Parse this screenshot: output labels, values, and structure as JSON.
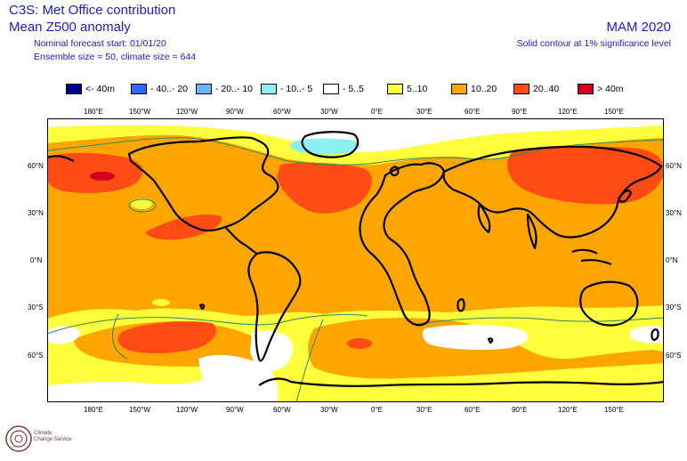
{
  "header": {
    "title_line1": "C3S: Met Office contribution",
    "title_line2": "Mean Z500 anomaly",
    "forecast_start": "Nominal forecast start: 01/01/20",
    "ensemble": "Ensemble size = 50, climate size = 644",
    "season": "MAM 2020",
    "significance": "Solid contour at 1% significance level"
  },
  "legend": [
    {
      "label": "<- 40m",
      "color": "#00008b"
    },
    {
      "label": "- 40..- 20",
      "color": "#3264ff"
    },
    {
      "label": "- 20..- 10",
      "color": "#64b4ff"
    },
    {
      "label": "- 10..- 5",
      "color": "#8cf0f0"
    },
    {
      "label": "- 5..5",
      "color": "#ffffff"
    },
    {
      "label": "5..10",
      "color": "#ffff3c"
    },
    {
      "label": "10..20",
      "color": "#ffa500"
    },
    {
      "label": "20..40",
      "color": "#ff4b14"
    },
    {
      "label": "> 40m",
      "color": "#d2001e"
    }
  ],
  "map": {
    "lon_labels": [
      "180°E",
      "150°W",
      "120°W",
      "90°W",
      "60°W",
      "30°W",
      "0°E",
      "30°E",
      "60°E",
      "90°E",
      "120°E",
      "150°E"
    ],
    "lat_labels": [
      "60°N",
      "30°N",
      "0°N",
      "30°S",
      "60°S"
    ],
    "contour_color": "#2e8b57"
  },
  "logo": {
    "line1": "Climate",
    "line2": "Change Service"
  }
}
